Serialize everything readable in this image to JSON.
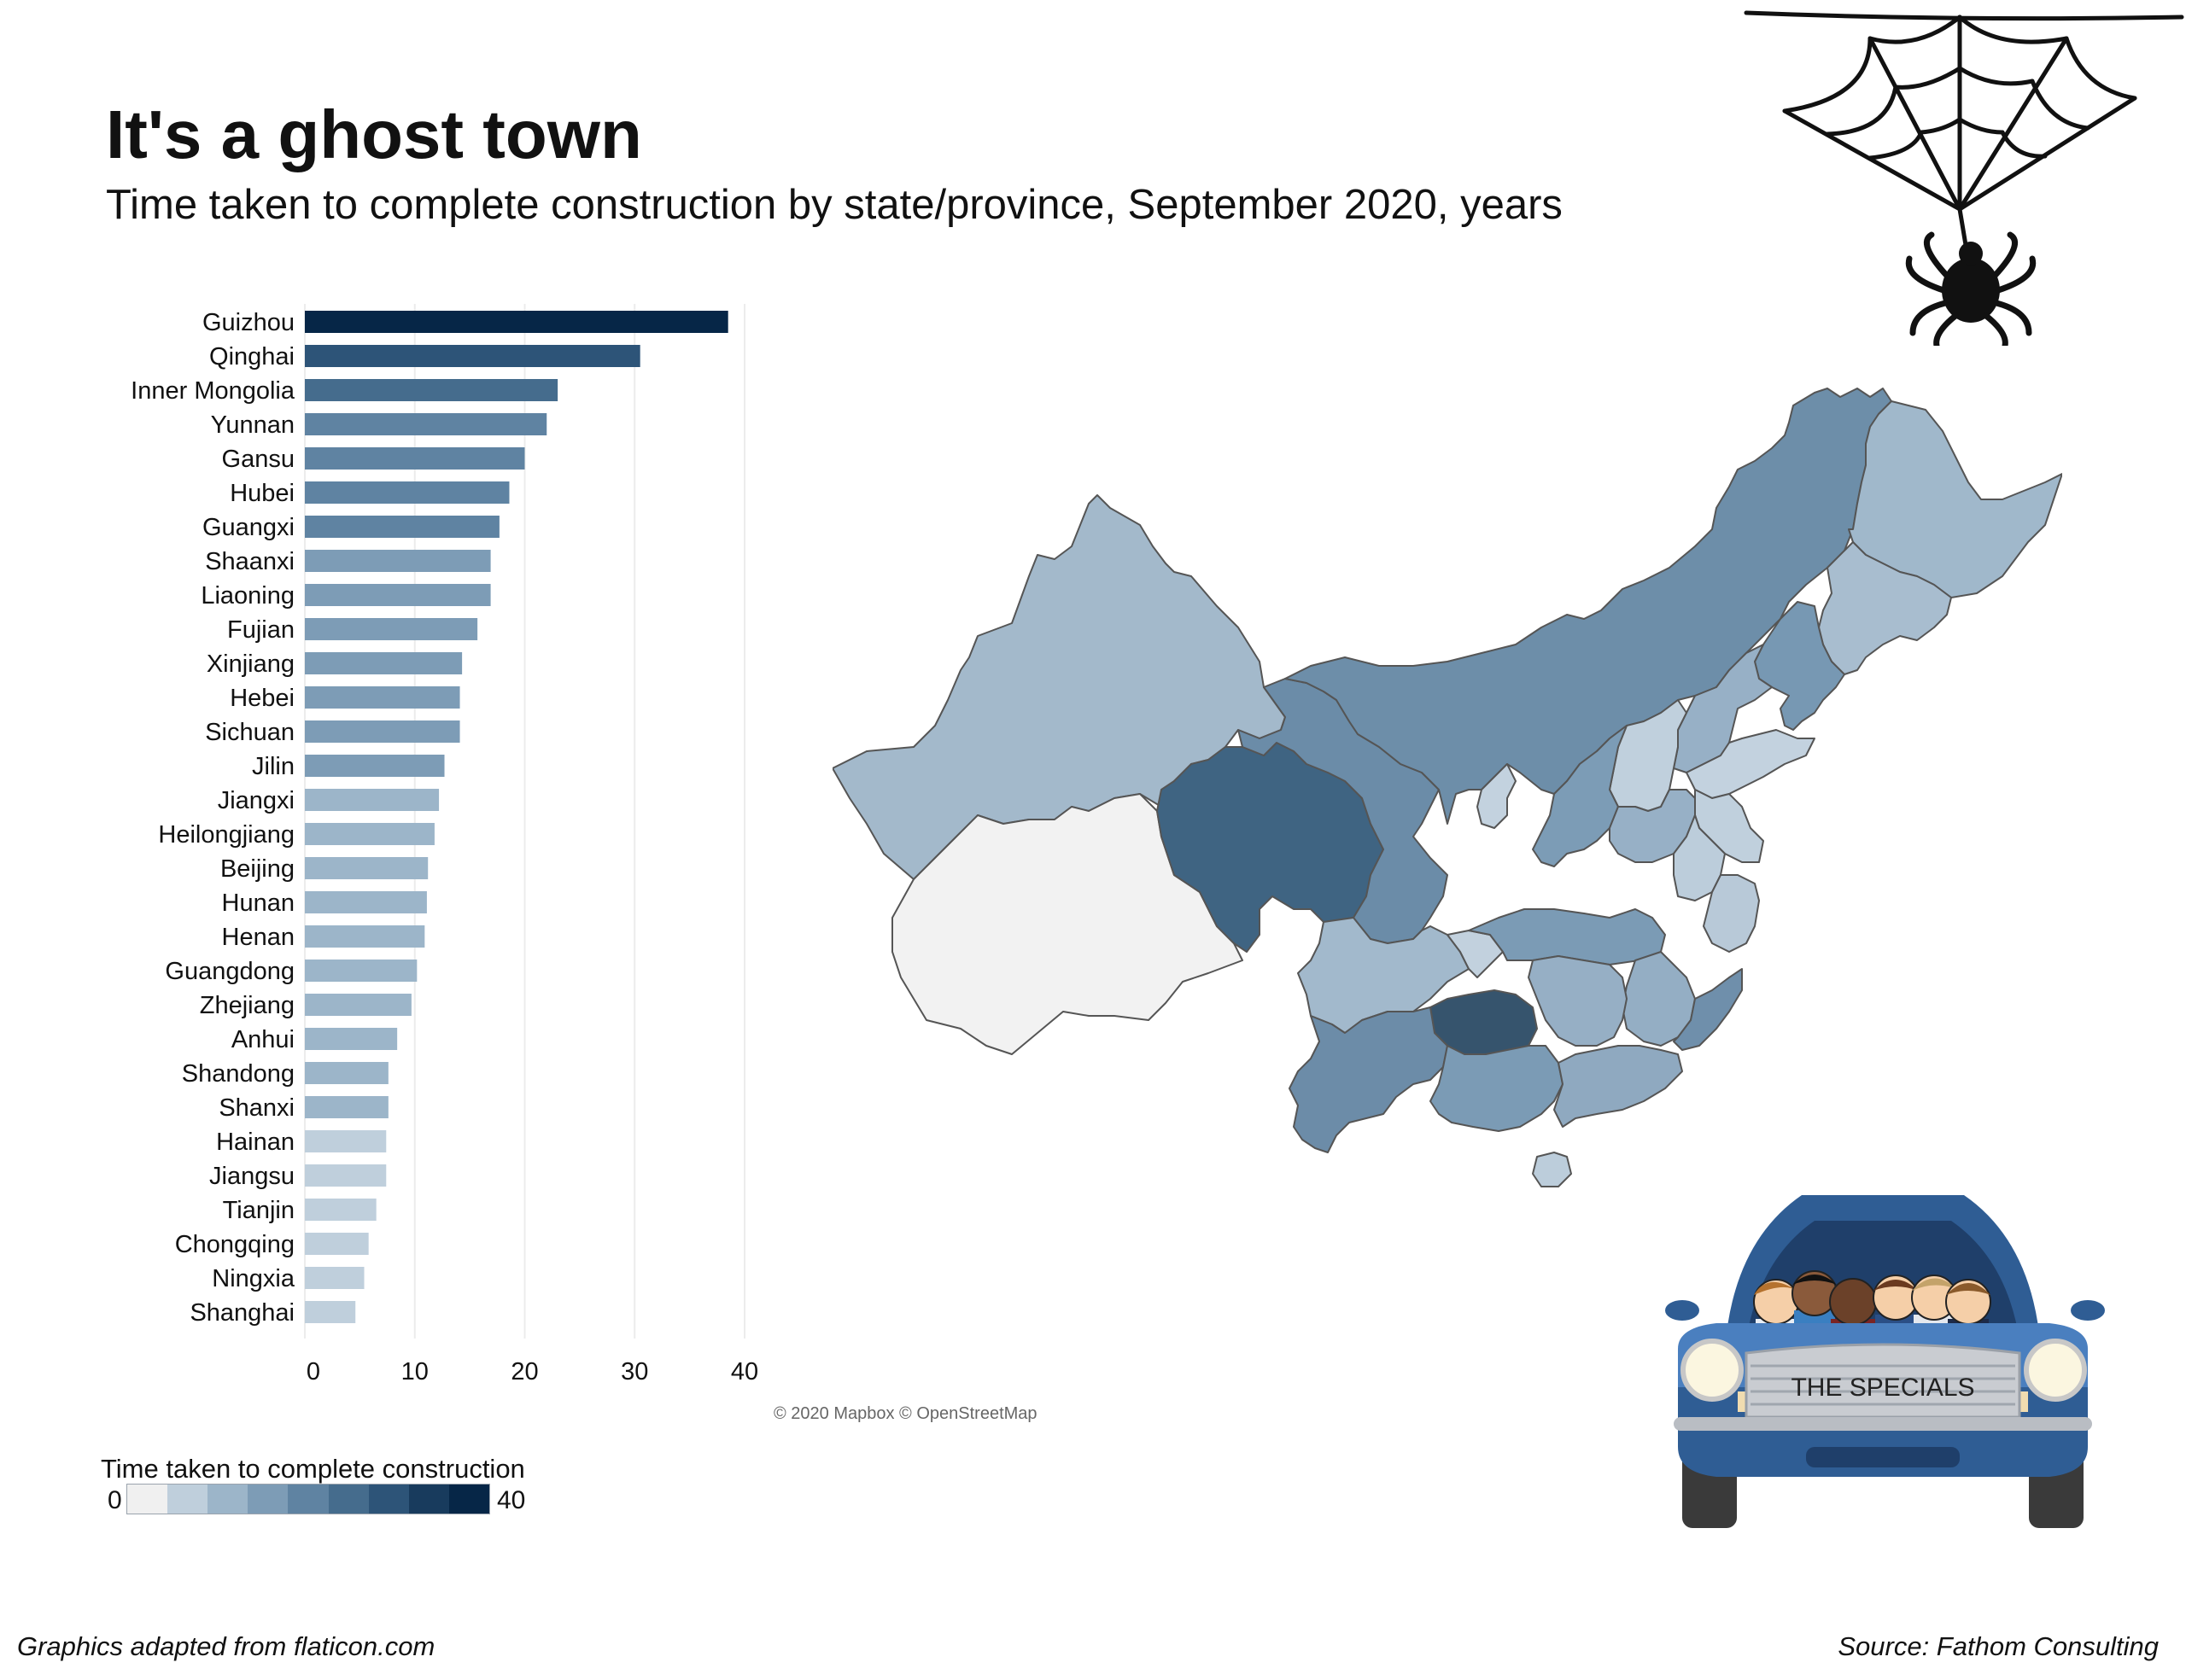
{
  "header": {
    "title": "It's a ghost town",
    "subtitle": "Time taken to complete construction by state/province, September 2020, years"
  },
  "chart_data": {
    "type": "bar",
    "orientation": "horizontal",
    "title": "It's a ghost town",
    "subtitle": "Time taken to complete construction by state/province, September 2020, years",
    "xlabel": "",
    "ylabel": "",
    "xlim": [
      0,
      40
    ],
    "xticks": [
      0,
      10,
      20,
      30,
      40
    ],
    "grid": true,
    "categories": [
      "Guizhou",
      "Qinghai",
      "Inner Mongolia",
      "Yunnan",
      "Gansu",
      "Hubei",
      "Guangxi",
      "Shaanxi",
      "Liaoning",
      "Fujian",
      "Xinjiang",
      "Hebei",
      "Sichuan",
      "Jilin",
      "Jiangxi",
      "Heilongjiang",
      "Beijing",
      "Hunan",
      "Henan",
      "Guangdong",
      "Zhejiang",
      "Anhui",
      "Shandong",
      "Shanxi",
      "Hainan",
      "Jiangsu",
      "Tianjin",
      "Chongqing",
      "Ningxia",
      "Shanghai"
    ],
    "values": [
      38.5,
      30.5,
      23.0,
      22.0,
      20.0,
      18.6,
      17.7,
      16.9,
      16.9,
      15.7,
      14.3,
      14.1,
      14.1,
      12.7,
      12.2,
      11.8,
      11.2,
      11.1,
      10.9,
      10.2,
      9.7,
      8.4,
      7.6,
      7.6,
      7.4,
      7.4,
      6.5,
      5.8,
      5.4,
      4.6
    ]
  },
  "legend": {
    "title": "Time taken to complete construction",
    "min_label": "0",
    "max_label": "40",
    "colors": [
      "#f0f0f0",
      "#bfcfdc",
      "#9cb5c9",
      "#7d9cb6",
      "#5f83a2",
      "#456c8d",
      "#2d5478",
      "#183b5d",
      "#062647"
    ]
  },
  "map": {
    "attribution": "© 2020 Mapbox © OpenStreetMap"
  },
  "car": {
    "sign_text": "THE SPECIALS"
  },
  "footer": {
    "left": "Graphics adapted from flaticon.com",
    "right": "Source: Fathom Consulting"
  }
}
